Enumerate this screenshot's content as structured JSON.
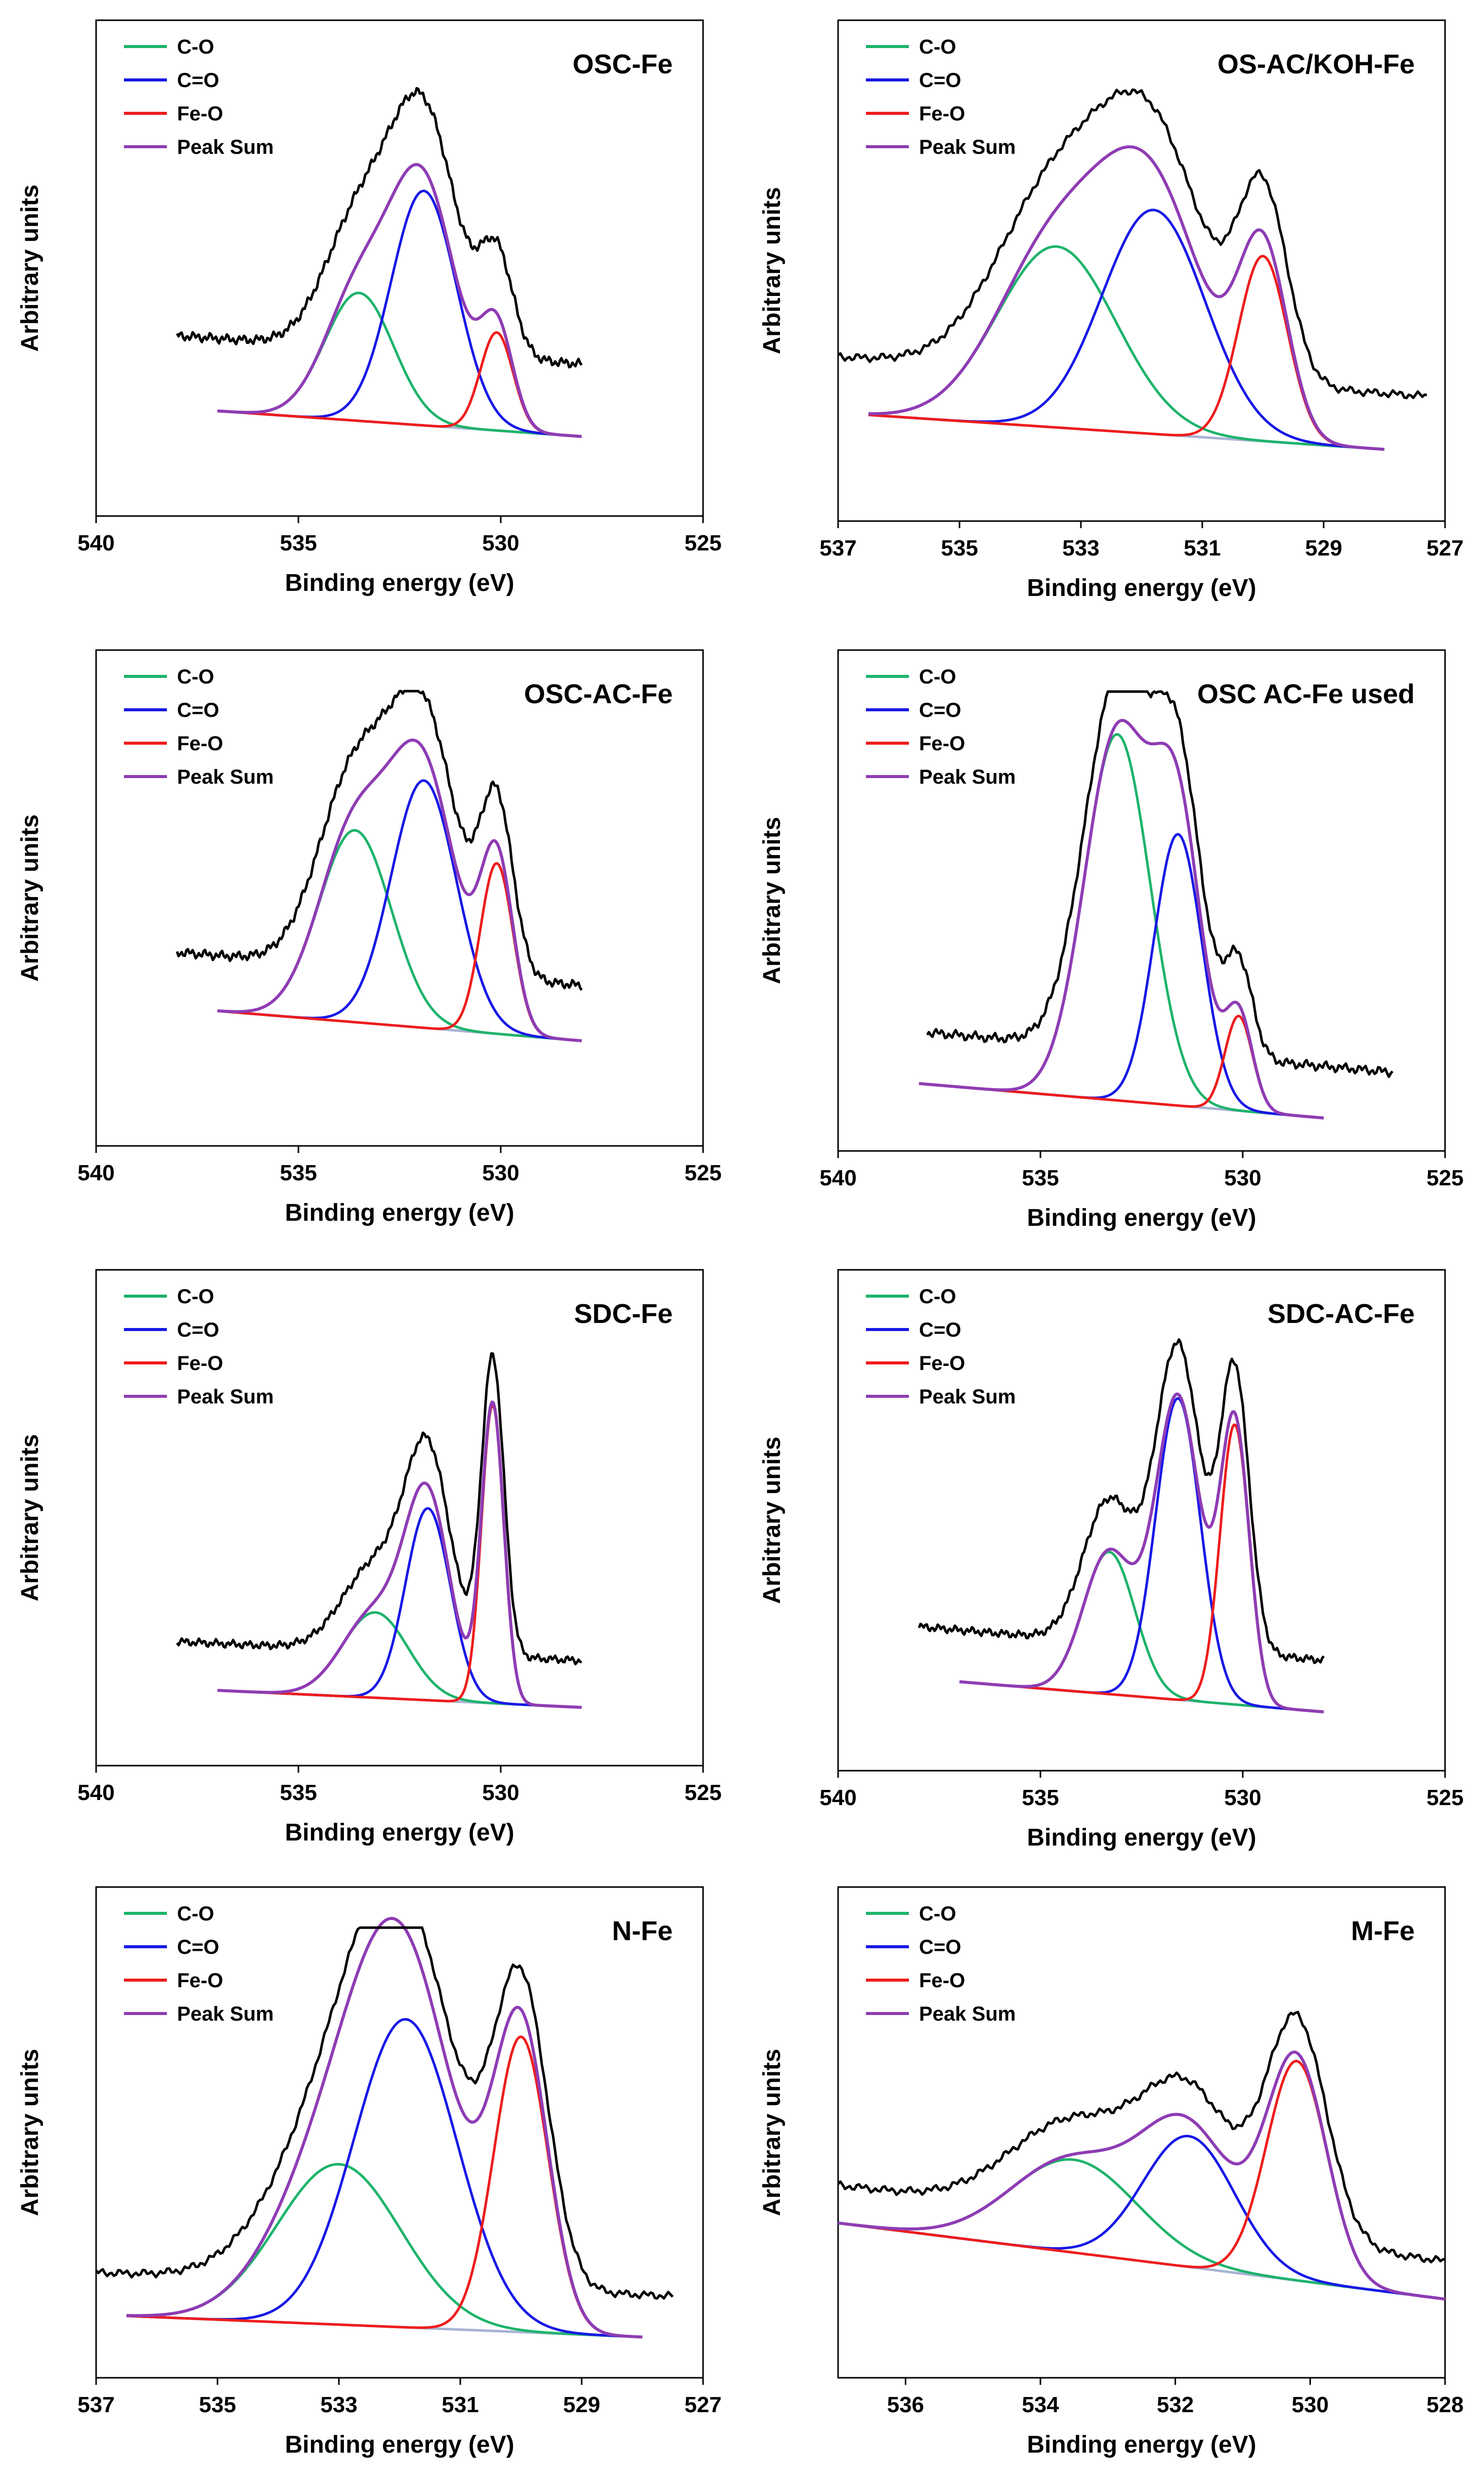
{
  "ylabel": "Arbitrary units",
  "xlabel": "Binding energy (eV)",
  "legend": [
    {
      "label": "C-O",
      "color": "#1db36b"
    },
    {
      "label": "C=O",
      "color": "#1818e6"
    },
    {
      "label": "Fe-O",
      "color": "#ee1c1c"
    },
    {
      "label": "Peak Sum",
      "color": "#8e3cb4"
    }
  ],
  "colors": {
    "raw": "#000000",
    "baseline": "#a6b4d2"
  },
  "chart_data": [
    {
      "type": "line",
      "title": "OSC-Fe",
      "xlabel": "Binding energy (eV)",
      "ylabel": "Arbitrary units",
      "xlim": [
        540,
        525
      ],
      "xticks": [
        540,
        535,
        530,
        525
      ],
      "ylim": [
        0,
        1
      ],
      "raw_range": [
        538,
        528
      ],
      "fit_range": [
        537,
        528
      ],
      "raw_offset": 0.17,
      "raw_noise": 0.012,
      "baseline": {
        "left": 0.2,
        "right": 0.14
      },
      "peaks": [
        {
          "name": "C-O",
          "center": 533.5,
          "fwhm": 2.0,
          "height": 0.3
        },
        {
          "name": "C=O",
          "center": 531.9,
          "fwhm": 1.9,
          "height": 0.55
        },
        {
          "name": "Fe-O",
          "center": 530.1,
          "fwhm": 0.95,
          "height": 0.23
        }
      ]
    },
    {
      "type": "line",
      "title": "OS-AC/KOH-Fe",
      "xlabel": "Binding energy (eV)",
      "ylabel": "Arbitrary units",
      "xlim": [
        537,
        527
      ],
      "xticks": [
        537,
        535,
        533,
        531,
        529,
        527
      ],
      "ylim": [
        0,
        1
      ],
      "raw_range": [
        537,
        527.3
      ],
      "fit_range": [
        536.5,
        528
      ],
      "raw_offset": 0.13,
      "raw_noise": 0.01,
      "baseline": {
        "left": 0.2,
        "right": 0.12
      },
      "peaks": [
        {
          "name": "C-O",
          "center": 533.4,
          "fwhm": 2.3,
          "height": 0.42
        },
        {
          "name": "C=O",
          "center": 531.8,
          "fwhm": 2.0,
          "height": 0.52
        },
        {
          "name": "Fe-O",
          "center": 530.0,
          "fwhm": 0.95,
          "height": 0.43
        }
      ]
    },
    {
      "type": "line",
      "title": "OSC-AC-Fe",
      "xlabel": "Binding energy (eV)",
      "ylabel": "Arbitrary units",
      "xlim": [
        540,
        525
      ],
      "xticks": [
        540,
        535,
        530,
        525
      ],
      "ylim": [
        0,
        1
      ],
      "raw_range": [
        538,
        528
      ],
      "fit_range": [
        537,
        528
      ],
      "raw_offset": 0.13,
      "raw_noise": 0.012,
      "baseline": {
        "left": 0.27,
        "right": 0.2
      },
      "peaks": [
        {
          "name": "C-O",
          "center": 533.6,
          "fwhm": 2.1,
          "height": 0.45
        },
        {
          "name": "C=O",
          "center": 531.9,
          "fwhm": 1.9,
          "height": 0.58
        },
        {
          "name": "Fe-O",
          "center": 530.1,
          "fwhm": 0.95,
          "height": 0.4
        }
      ]
    },
    {
      "type": "line",
      "title": "OSC AC-Fe used",
      "xlabel": "Binding energy (eV)",
      "ylabel": "Arbitrary units",
      "xlim": [
        540,
        525
      ],
      "xticks": [
        540,
        535,
        530,
        525
      ],
      "ylim": [
        0,
        1
      ],
      "raw_range": [
        537.8,
        526.3
      ],
      "fit_range": [
        538,
        528
      ],
      "raw_offset": 0.12,
      "raw_noise": 0.012,
      "baseline": {
        "left": 0.11,
        "right": 0.03
      },
      "peaks": [
        {
          "name": "C-O",
          "center": 533.1,
          "fwhm": 1.9,
          "height": 0.85
        },
        {
          "name": "C=O",
          "center": 531.6,
          "fwhm": 1.4,
          "height": 0.63
        },
        {
          "name": "Fe-O",
          "center": 530.1,
          "fwhm": 0.8,
          "height": 0.22
        }
      ]
    },
    {
      "type": "line",
      "title": "SDC-Fe",
      "xlabel": "Binding energy (eV)",
      "ylabel": "Arbitrary units",
      "xlim": [
        540,
        525
      ],
      "xticks": [
        540,
        535,
        530,
        525
      ],
      "ylim": [
        0,
        1
      ],
      "raw_range": [
        538,
        528
      ],
      "fit_range": [
        537,
        528
      ],
      "raw_offset": 0.11,
      "raw_noise": 0.01,
      "baseline": {
        "left": 0.13,
        "right": 0.09
      },
      "peaks": [
        {
          "name": "C-O",
          "center": 533.1,
          "fwhm": 1.9,
          "height": 0.2
        },
        {
          "name": "C=O",
          "center": 531.8,
          "fwhm": 1.3,
          "height": 0.45
        },
        {
          "name": "Fe-O",
          "center": 530.2,
          "fwhm": 0.65,
          "height": 0.7
        }
      ]
    },
    {
      "type": "line",
      "title": "SDC-AC-Fe",
      "xlabel": "Binding energy (eV)",
      "ylabel": "Arbitrary units",
      "xlim": [
        540,
        525
      ],
      "xticks": [
        540,
        535,
        530,
        525
      ],
      "ylim": [
        0,
        1
      ],
      "raw_range": [
        538,
        528
      ],
      "fit_range": [
        537,
        528
      ],
      "raw_offset": 0.12,
      "raw_noise": 0.01,
      "baseline": {
        "left": 0.16,
        "right": 0.09
      },
      "peaks": [
        {
          "name": "C-O",
          "center": 533.3,
          "fwhm": 1.5,
          "height": 0.33
        },
        {
          "name": "C=O",
          "center": 531.6,
          "fwhm": 1.3,
          "height": 0.7
        },
        {
          "name": "Fe-O",
          "center": 530.2,
          "fwhm": 0.85,
          "height": 0.65
        }
      ]
    },
    {
      "type": "line",
      "title": "N-Fe",
      "xlabel": "Binding energy (eV)",
      "ylabel": "Arbitrary units",
      "xlim": [
        537,
        527
      ],
      "xticks": [
        537,
        535,
        533,
        531,
        529,
        527
      ],
      "ylim": [
        0,
        1
      ],
      "raw_range": [
        537,
        527.5
      ],
      "fit_range": [
        536.5,
        528
      ],
      "raw_offset": 0.1,
      "raw_noise": 0.01,
      "baseline": {
        "left": 0.1,
        "right": 0.05
      },
      "peaks": [
        {
          "name": "C-O",
          "center": 533.0,
          "fwhm": 2.4,
          "height": 0.38
        },
        {
          "name": "C=O",
          "center": 531.9,
          "fwhm": 2.0,
          "height": 0.73
        },
        {
          "name": "Fe-O",
          "center": 530.0,
          "fwhm": 1.05,
          "height": 0.7
        }
      ]
    },
    {
      "type": "line",
      "title": "M-Fe",
      "xlabel": "Binding energy (eV)",
      "ylabel": "Arbitrary units",
      "xlim": [
        537,
        528
      ],
      "xticks": [
        536,
        534,
        532,
        530,
        528
      ],
      "ylim": [
        0,
        1
      ],
      "raw_range": [
        537,
        528
      ],
      "fit_range": [
        537,
        528
      ],
      "raw_offset": 0.09,
      "raw_noise": 0.01,
      "baseline": {
        "left": 0.32,
        "right": 0.14
      },
      "peaks": [
        {
          "name": "C-O",
          "center": 533.5,
          "fwhm": 2.2,
          "height": 0.22
        },
        {
          "name": "C=O",
          "center": 531.8,
          "fwhm": 1.6,
          "height": 0.31
        },
        {
          "name": "Fe-O",
          "center": 530.2,
          "fwhm": 1.05,
          "height": 0.52
        }
      ]
    }
  ]
}
